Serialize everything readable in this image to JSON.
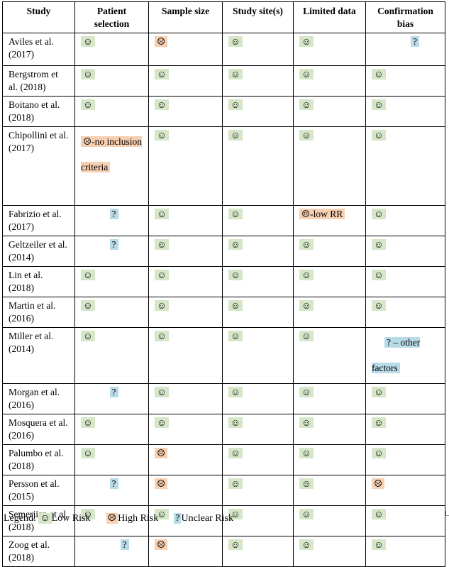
{
  "headers": [
    "Study",
    "Patient selection",
    "Sample size",
    "Study site(s)",
    "Limited data",
    "Confirmation bias"
  ],
  "symbols": {
    "low": "☺",
    "high": "☹",
    "unclear": "?"
  },
  "rows": [
    {
      "study": "Aviles et al. (2017)",
      "cells": [
        {
          "risk": "low",
          "text": "☺"
        },
        {
          "risk": "high",
          "text": "☹"
        },
        {
          "risk": "low",
          "text": "☺"
        },
        {
          "risk": "low",
          "text": "☺"
        },
        {
          "risk": "unclear",
          "text": "?"
        }
      ]
    },
    {
      "study": "Bergstrom et al. (2018)",
      "cells": [
        {
          "risk": "low",
          "text": "☺"
        },
        {
          "risk": "low",
          "text": "☺"
        },
        {
          "risk": "low",
          "text": "☺"
        },
        {
          "risk": "low",
          "text": "☺"
        },
        {
          "risk": "low",
          "text": "☺"
        }
      ]
    },
    {
      "study": "Boitano et al. (2018)",
      "cells": [
        {
          "risk": "low",
          "text": "☺"
        },
        {
          "risk": "low",
          "text": "☺"
        },
        {
          "risk": "low",
          "text": "☺"
        },
        {
          "risk": "low",
          "text": "☺"
        },
        {
          "risk": "low",
          "text": "☺"
        }
      ]
    },
    {
      "study": "Chipollini et al. (2017)",
      "cells": [
        {
          "risk": "high",
          "text": "☹-no inclusion criteria"
        },
        {
          "risk": "low",
          "text": "☺"
        },
        {
          "risk": "low",
          "text": "☺"
        },
        {
          "risk": "low",
          "text": "☺"
        },
        {
          "risk": "low",
          "text": "☺"
        }
      ]
    },
    {
      "study": "Fabrizio et al. (2017)",
      "cells": [
        {
          "risk": "unclear",
          "text": "?"
        },
        {
          "risk": "low",
          "text": "☺"
        },
        {
          "risk": "low",
          "text": "☺"
        },
        {
          "risk": "high",
          "text": "☹-low RR"
        },
        {
          "risk": "low",
          "text": "☺"
        }
      ]
    },
    {
      "study": "Geltzeiler et al. (2014)",
      "cells": [
        {
          "risk": "unclear",
          "text": "?"
        },
        {
          "risk": "low",
          "text": "☺"
        },
        {
          "risk": "low",
          "text": "☺"
        },
        {
          "risk": "low",
          "text": "☺"
        },
        {
          "risk": "low",
          "text": "☺"
        }
      ]
    },
    {
      "study": "Lin et al. (2018)",
      "cells": [
        {
          "risk": "low",
          "text": "☺"
        },
        {
          "risk": "low",
          "text": "☺"
        },
        {
          "risk": "low",
          "text": "☺"
        },
        {
          "risk": "low",
          "text": "☺"
        },
        {
          "risk": "low",
          "text": "☺"
        }
      ]
    },
    {
      "study": "Martin et al. (2016)",
      "cells": [
        {
          "risk": "low",
          "text": "☺"
        },
        {
          "risk": "low",
          "text": "☺"
        },
        {
          "risk": "low",
          "text": "☺"
        },
        {
          "risk": "low",
          "text": "☺"
        },
        {
          "risk": "low",
          "text": "☺"
        }
      ]
    },
    {
      "study": "Miller et al. (2014)",
      "cells": [
        {
          "risk": "low",
          "text": "☺"
        },
        {
          "risk": "low",
          "text": "☺"
        },
        {
          "risk": "low",
          "text": "☺"
        },
        {
          "risk": "low",
          "text": "☺"
        },
        {
          "risk": "unclear",
          "text": "? – other factors"
        }
      ]
    },
    {
      "study": "Morgan et al. (2016)",
      "cells": [
        {
          "risk": "unclear",
          "text": "?"
        },
        {
          "risk": "low",
          "text": "☺"
        },
        {
          "risk": "low",
          "text": "☺"
        },
        {
          "risk": "low",
          "text": "☺"
        },
        {
          "risk": "low",
          "text": "☺"
        }
      ]
    },
    {
      "study": "Mosquera et al. (2016)",
      "cells": [
        {
          "risk": "low",
          "text": "☺"
        },
        {
          "risk": "low",
          "text": "☺"
        },
        {
          "risk": "low",
          "text": "☺"
        },
        {
          "risk": "low",
          "text": "☺"
        },
        {
          "risk": "low",
          "text": "☺"
        }
      ]
    },
    {
      "study": "Palumbo et al. (2018)",
      "cells": [
        {
          "risk": "low",
          "text": "☺"
        },
        {
          "risk": "high",
          "text": "☹"
        },
        {
          "risk": "low",
          "text": "☺"
        },
        {
          "risk": "low",
          "text": "☺"
        },
        {
          "risk": "low",
          "text": "☺"
        }
      ]
    },
    {
      "study": "Persson et al. (2015)",
      "cells": [
        {
          "risk": "unclear",
          "text": "?"
        },
        {
          "risk": "high",
          "text": "☹"
        },
        {
          "risk": "low",
          "text": "☺"
        },
        {
          "risk": "low",
          "text": "☺"
        },
        {
          "risk": "high",
          "text": "☹"
        }
      ]
    },
    {
      "study": "Semerjian et al. (2018)",
      "cells": [
        {
          "risk": "low",
          "text": "☺"
        },
        {
          "risk": "low",
          "text": "☺"
        },
        {
          "risk": "low",
          "text": "☺"
        },
        {
          "risk": "low",
          "text": "☺"
        },
        {
          "risk": "low",
          "text": "☺"
        }
      ]
    },
    {
      "study": "Zoog et al. (2018)",
      "cells": [
        {
          "risk": "unclear",
          "text": "?"
        },
        {
          "risk": "high",
          "text": "☹"
        },
        {
          "risk": "low",
          "text": "☺"
        },
        {
          "risk": "low",
          "text": "☺"
        },
        {
          "risk": "low",
          "text": "☺"
        }
      ]
    }
  ],
  "legend": {
    "title": "Legend:",
    "items": [
      {
        "risk": "low",
        "symbol": "☺",
        "label": "Low Risk"
      },
      {
        "risk": "high",
        "symbol": "☹",
        "label": "High Risk"
      },
      {
        "risk": "unclear",
        "symbol": "?",
        "label": "Unclear Risk"
      }
    ]
  },
  "colors": {
    "low": "#d6e6c8",
    "high": "#f7cfb1",
    "unclear": "#b9dbe8"
  }
}
